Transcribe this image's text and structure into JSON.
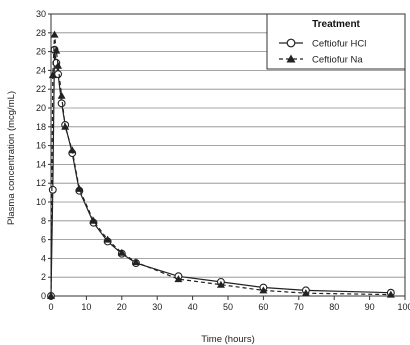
{
  "chart_data": {
    "type": "line",
    "xlabel": "Time (hours)",
    "ylabel": "Plasma concentration (mcg/mL)",
    "xlim": [
      0,
      100
    ],
    "ylim": [
      0,
      30
    ],
    "x_ticks": [
      0,
      10,
      20,
      30,
      40,
      50,
      60,
      70,
      80,
      90,
      100
    ],
    "y_ticks": [
      0,
      2,
      4,
      6,
      8,
      10,
      12,
      14,
      16,
      18,
      20,
      22,
      24,
      26,
      28,
      30
    ],
    "grid": "horizontal",
    "legend": {
      "title": "Treatment",
      "placement": "top-right"
    },
    "series": [
      {
        "name": "Ceftiofur HCl",
        "marker": "open-circle",
        "line": "solid",
        "x": [
          0,
          0.5,
          1,
          1.5,
          2,
          3,
          4,
          6,
          8,
          12,
          16,
          20,
          24,
          36,
          48,
          60,
          72,
          96
        ],
        "y": [
          0,
          11.3,
          26.2,
          24.8,
          23.6,
          20.5,
          18.2,
          15.2,
          11.2,
          7.8,
          5.8,
          4.5,
          3.5,
          2.1,
          1.5,
          0.9,
          0.6,
          0.35
        ]
      },
      {
        "name": "Ceftiofur Na",
        "marker": "filled-triangle",
        "line": "dashed",
        "x": [
          0,
          0.5,
          1,
          1.5,
          2,
          3,
          4,
          6,
          8,
          12,
          16,
          20,
          24,
          36,
          48,
          60,
          72,
          96
        ],
        "y": [
          0,
          23.5,
          27.8,
          26.1,
          24.5,
          21.3,
          18.0,
          15.5,
          11.4,
          8.0,
          6.0,
          4.6,
          3.6,
          1.8,
          1.2,
          0.6,
          0.3,
          0.15
        ]
      }
    ]
  }
}
